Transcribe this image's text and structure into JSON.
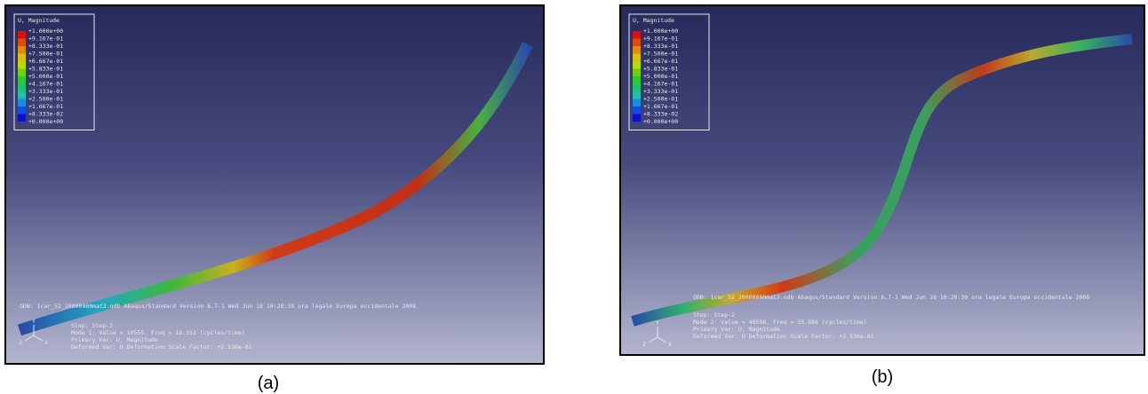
{
  "panels": [
    {
      "caption": "(a)",
      "legend": {
        "title": "U, Magnitude",
        "labels": [
          "+1.000e+00",
          "+9.167e-01",
          "+8.333e-01",
          "+7.500e-01",
          "+6.667e-01",
          "+5.833e-01",
          "+5.000e-01",
          "+4.167e-01",
          "+3.333e-01",
          "+2.500e-01",
          "+1.667e-01",
          "+8.333e-02",
          "+0.000e+00"
        ]
      },
      "odb_line": "ODB: 1car_52_20000000mat2.odb    Abaqus/Standard Version 6.7-1    Wed Jun 18 10:28:39 ora legale Europa occidentale 2008",
      "step_lines": [
        "Step: Step-2",
        "Mode   1: Value =  10555.   Freq =  16.351   (cycles/time)",
        "Primary Var: U, Magnitude",
        "Deformed Var: U   Deformation Scale Factor: +2.536e-01"
      ],
      "triad": [
        "Y",
        "Z",
        "X"
      ]
    },
    {
      "caption": "(b)",
      "legend": {
        "title": "U, Magnitude",
        "labels": [
          "+1.000e+00",
          "+9.167e-01",
          "+8.333e-01",
          "+7.500e-01",
          "+6.667e-01",
          "+5.833e-01",
          "+5.000e-01",
          "+4.167e-01",
          "+3.333e-01",
          "+2.500e-01",
          "+1.667e-01",
          "+8.333e-02",
          "+0.000e+00"
        ]
      },
      "odb_line": "ODB: 1car_52_20000000mat2.odb    Abaqus/Standard Version 6.7-1    Wed Jun 18 10:28:39 ora legale Europa occidentale 2008",
      "step_lines": [
        "Step: Step-2",
        "Mode   2: Value =  48598.   Freq =  35.086   (cycles/time)",
        "Primary Var: U, Magnitude",
        "Deformed Var: U   Deformation Scale Factor: +2.536e-01"
      ],
      "triad": [
        "Y",
        "Z",
        "X"
      ]
    }
  ]
}
